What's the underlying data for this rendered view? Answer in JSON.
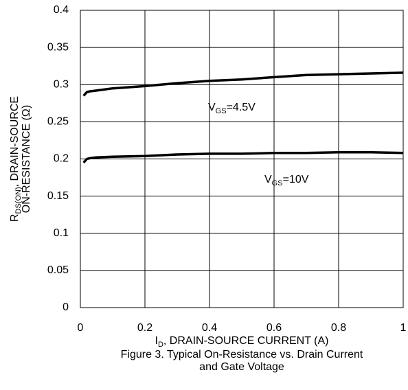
{
  "chart_data": {
    "type": "line",
    "title": [
      "Figure 3. Typical On-Resistance vs. Drain Current",
      "and Gate Voltage"
    ],
    "xlabel": [
      {
        "text": "I"
      },
      {
        "text": "D",
        "sub": true
      },
      {
        "text": ", DRAIN-SOURCE CURRENT (A)"
      }
    ],
    "ylabel": [
      [
        {
          "text": "R"
        },
        {
          "text": "DS(ON)",
          "sub": true
        },
        {
          "text": ", DRAIN-SOURCE"
        }
      ],
      [
        {
          "text": "ON-RESISTANCE (Ω)"
        }
      ]
    ],
    "annotations": [
      [
        {
          "text": "V"
        },
        {
          "text": "GS",
          "sub": true
        },
        {
          "text": "=4.5V"
        }
      ],
      [
        {
          "text": "V"
        },
        {
          "text": "GS",
          "sub": true
        },
        {
          "text": "=10V"
        }
      ]
    ],
    "xlim": [
      0,
      1
    ],
    "xticks": [
      0,
      0.2,
      0.4,
      0.6,
      0.8,
      1
    ],
    "ylim": [
      0,
      0.4
    ],
    "yticks": [
      0,
      0.05,
      0.1,
      0.15,
      0.2,
      0.25,
      0.3,
      0.35,
      0.4
    ],
    "grid": true,
    "x": [
      0.01,
      0.02,
      0.03,
      0.05,
      0.1,
      0.2,
      0.3,
      0.4,
      0.5,
      0.6,
      0.7,
      0.8,
      0.9,
      1.0
    ],
    "series": [
      {
        "name": "VGS=4.5V",
        "color": "#000000",
        "values": [
          0.285,
          0.29,
          0.291,
          0.292,
          0.295,
          0.298,
          0.302,
          0.305,
          0.307,
          0.31,
          0.313,
          0.314,
          0.315,
          0.316
        ]
      },
      {
        "name": "VGS=10V",
        "color": "#000000",
        "values": [
          0.195,
          0.2,
          0.201,
          0.202,
          0.203,
          0.204,
          0.206,
          0.207,
          0.207,
          0.208,
          0.208,
          0.209,
          0.209,
          0.208
        ]
      }
    ]
  }
}
